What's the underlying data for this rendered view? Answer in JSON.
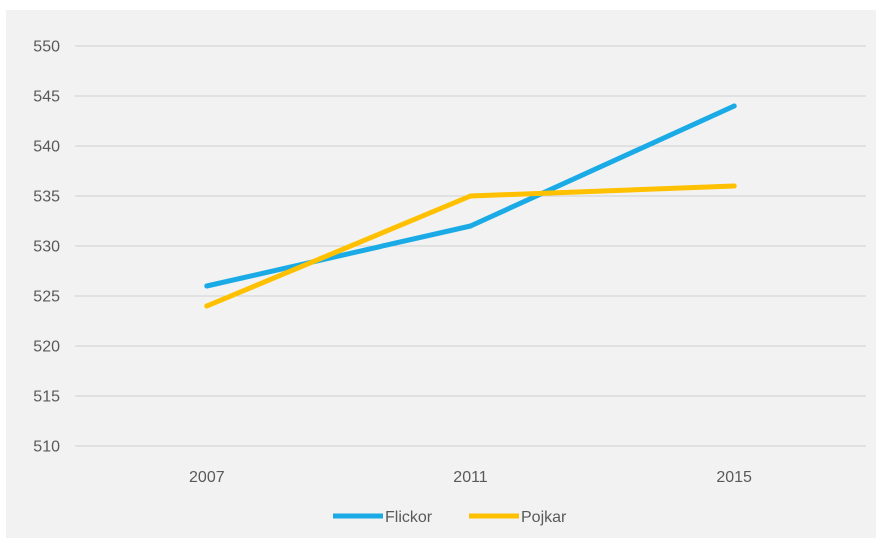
{
  "chart_data": {
    "type": "line",
    "categories": [
      "2007",
      "2011",
      "2015"
    ],
    "series": [
      {
        "name": "Flickor",
        "values": [
          526,
          532,
          544
        ],
        "color": "#1AABE6"
      },
      {
        "name": "Pojkar",
        "values": [
          524,
          535,
          536
        ],
        "color": "#FFC000"
      }
    ],
    "ylim": [
      510,
      550
    ],
    "yticks": [
      510,
      515,
      520,
      525,
      530,
      535,
      540,
      545,
      550
    ],
    "grid": true,
    "legend_position": "bottom"
  }
}
